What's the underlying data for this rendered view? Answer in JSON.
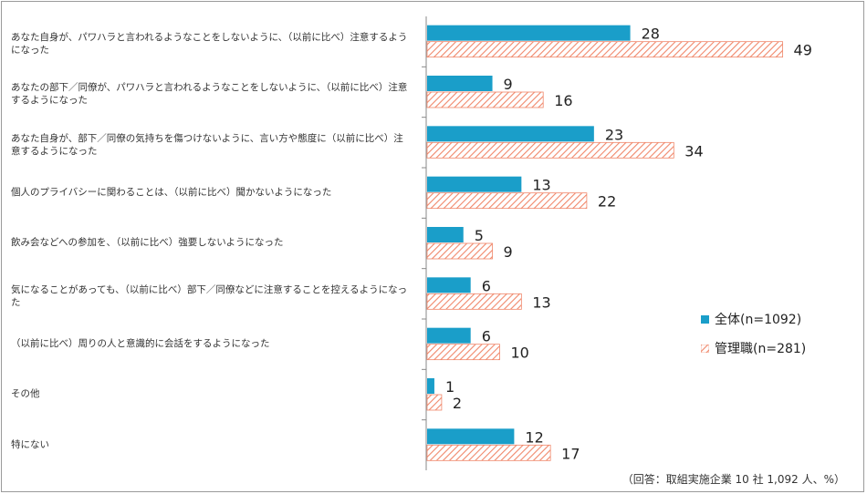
{
  "chart_data": {
    "type": "bar",
    "orientation": "horizontal",
    "categories": [
      "あなた自身が、パワハラと言われるようなことをしないように、（以前に比べ）注意するようになった",
      "あなたの部下／同僚が、パワハラと言われるようなことをしないように、（以前に比べ）注意するようになった",
      "あなた自身が、部下／同僚の気持ちを傷つけないように、言い方や態度に（以前に比べ）注意するようになった",
      "個人のプライバシーに関わることは、（以前に比べ）聞かないようになった",
      "飲み会などへの参加を、（以前に比べ）強要しないようになった",
      "気になることがあっても、（以前に比べ）部下／同僚などに注意することを控えるようになった",
      "（以前に比べ）周りの人と意識的に会話をするようになった",
      "その他",
      "特にない"
    ],
    "series": [
      {
        "name": "全体(n=1092)",
        "values": [
          28,
          9,
          23,
          13,
          5,
          6,
          6,
          1,
          12
        ],
        "color": "#1a9ec9",
        "pattern": "solid"
      },
      {
        "name": "管理職(n=281)",
        "values": [
          49,
          16,
          34,
          22,
          9,
          13,
          10,
          2,
          17
        ],
        "color": "#f0876a",
        "pattern": "hatched"
      }
    ],
    "xlim": [
      0,
      60
    ],
    "grid": false,
    "legend_position": "right",
    "data_labels": true
  },
  "note": "（回答：取組実施企業 10 社 1,092 人、%）"
}
